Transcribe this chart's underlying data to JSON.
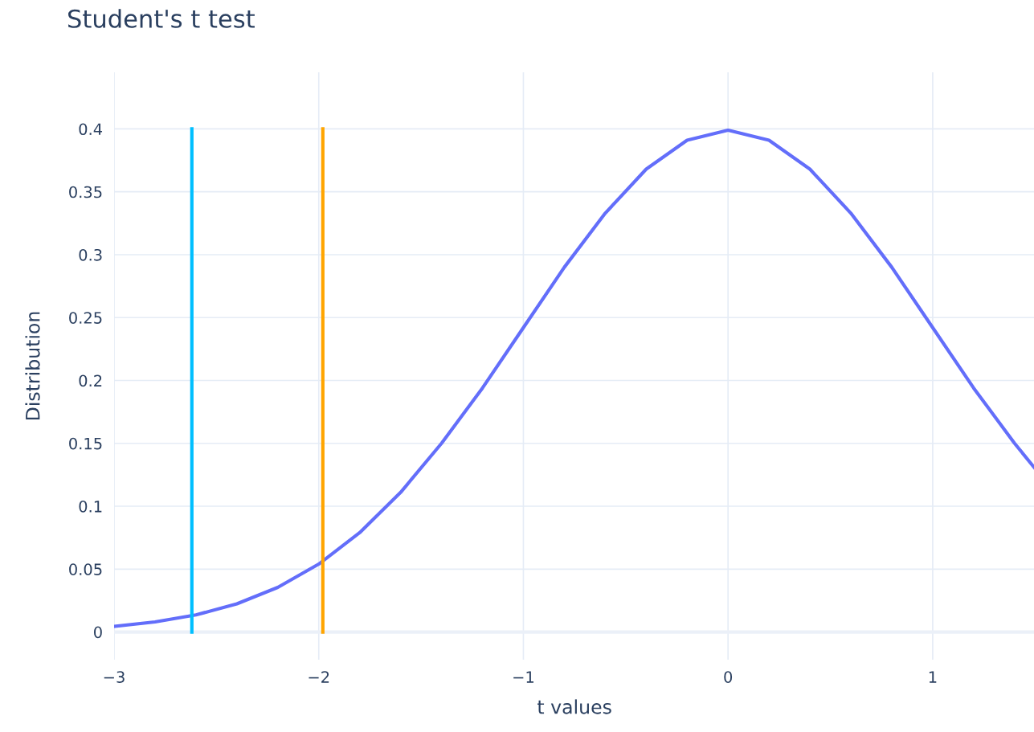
{
  "chart_data": {
    "type": "line",
    "title": "Student's t test",
    "xlabel": "t values",
    "ylabel": "Distribution",
    "xlim": [
      -3,
      1.5
    ],
    "ylim": [
      -0.022,
      0.445
    ],
    "xticks": [
      {
        "value": -3,
        "label": "−3"
      },
      {
        "value": -2,
        "label": "−2"
      },
      {
        "value": -1,
        "label": "−1"
      },
      0,
      1
    ],
    "yticks": [
      0,
      0.05,
      0.1,
      0.15,
      0.2,
      0.25,
      0.3,
      0.35,
      0.4
    ],
    "grid": true,
    "legend": false,
    "line_style": "solid",
    "marker": "none",
    "series": [
      {
        "color": "#636efa",
        "x": [
          -3,
          -2.8,
          -2.6,
          -2.4,
          -2.2,
          -2.0,
          -1.8,
          -1.6,
          -1.4,
          -1.2,
          -1.0,
          -0.8,
          -0.6,
          -0.4,
          -0.2,
          0,
          0.2,
          0.4,
          0.6,
          0.8,
          1.0,
          1.2,
          1.4,
          1.5
        ],
        "values": [
          0.0045,
          0.008,
          0.0136,
          0.0224,
          0.0355,
          0.054,
          0.079,
          0.111,
          0.15,
          0.194,
          0.242,
          0.29,
          0.333,
          0.368,
          0.391,
          0.399,
          0.391,
          0.368,
          0.333,
          0.29,
          0.242,
          0.194,
          0.15,
          0.13
        ]
      },
      {
        "color": "#00bfff",
        "x": [
          -2.62,
          -2.62
        ],
        "values": [
          0,
          0.4
        ]
      },
      {
        "color": "#ffa500",
        "x": [
          -1.98,
          -1.98
        ],
        "values": [
          0,
          0.4
        ]
      }
    ]
  }
}
